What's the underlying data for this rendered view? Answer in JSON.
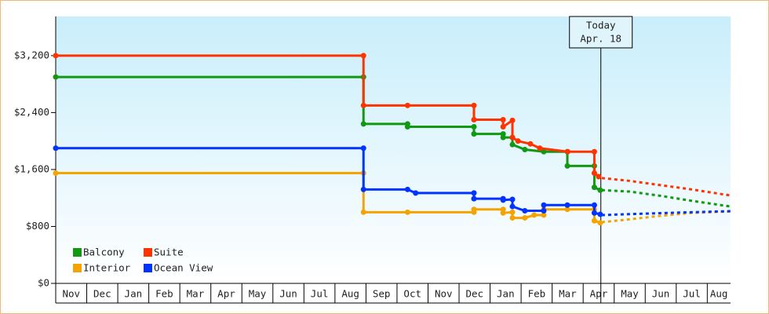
{
  "chart_data": {
    "type": "step-line",
    "xlim": [
      0,
      21.75
    ],
    "xticks": [
      {
        "value": 0,
        "label": "Nov"
      },
      {
        "value": 1,
        "label": "Dec"
      },
      {
        "value": 2,
        "label": "Jan"
      },
      {
        "value": 3,
        "label": "Feb"
      },
      {
        "value": 4,
        "label": "Mar"
      },
      {
        "value": 5,
        "label": "Apr"
      },
      {
        "value": 6,
        "label": "May"
      },
      {
        "value": 7,
        "label": "Jun"
      },
      {
        "value": 8,
        "label": "Jul"
      },
      {
        "value": 9,
        "label": "Aug"
      },
      {
        "value": 10,
        "label": "Sep"
      },
      {
        "value": 11,
        "label": "Oct"
      },
      {
        "value": 12,
        "label": "Nov"
      },
      {
        "value": 13,
        "label": "Dec"
      },
      {
        "value": 14,
        "label": "Jan"
      },
      {
        "value": 15,
        "label": "Feb"
      },
      {
        "value": 16,
        "label": "Mar"
      },
      {
        "value": 17,
        "label": "Apr"
      },
      {
        "value": 18,
        "label": "May"
      },
      {
        "value": 19,
        "label": "Jun"
      },
      {
        "value": 20,
        "label": "Jul"
      },
      {
        "value": 21,
        "label": "Aug"
      }
    ],
    "ylim": [
      0,
      3750
    ],
    "yticks": [
      {
        "value": 0,
        "label": "$0"
      },
      {
        "value": 800,
        "label": "$800"
      },
      {
        "value": 1600,
        "label": "$1,600"
      },
      {
        "value": 2400,
        "label": "$2,400"
      },
      {
        "value": 3200,
        "label": "$3,200"
      }
    ],
    "annotation": {
      "x": 17.57,
      "lines": [
        "Today",
        "Apr. 18"
      ]
    },
    "legend": "lower-left",
    "series": [
      {
        "name": "Balcony",
        "color": "#119911",
        "x": [
          0,
          9.92,
          9.92,
          11.34,
          11.34,
          13.48,
          13.48,
          14.42,
          14.42,
          14.72,
          14.72,
          15.12,
          15.73,
          16.49,
          16.49,
          17.36,
          17.36,
          17.55
        ],
        "values": [
          2900,
          2900,
          2240,
          2240,
          2200,
          2200,
          2100,
          2100,
          2050,
          2050,
          1950,
          1880,
          1850,
          1850,
          1650,
          1650,
          1350,
          1310
        ],
        "forecast_x": [
          17.6,
          18.5,
          19.5,
          20.5,
          21.75
        ],
        "forecast_values": [
          1310,
          1290,
          1230,
          1160,
          1080
        ]
      },
      {
        "name": "Suite",
        "color": "#ff3300",
        "x": [
          0,
          9.92,
          9.92,
          11.34,
          13.48,
          13.48,
          14.42,
          14.42,
          14.72,
          14.72,
          14.9,
          15.3,
          15.6,
          16.5,
          17.36,
          17.36,
          17.5
        ],
        "values": [
          3200,
          3200,
          2500,
          2500,
          2500,
          2300,
          2300,
          2200,
          2290,
          2050,
          2000,
          1960,
          1900,
          1850,
          1850,
          1550,
          1500
        ],
        "forecast_x": [
          17.6,
          18.5,
          19.5,
          20.5,
          21.75
        ],
        "forecast_values": [
          1480,
          1440,
          1380,
          1320,
          1235
        ]
      },
      {
        "name": "Interior",
        "color": "#f5a300",
        "x": [
          0,
          9.92,
          9.92,
          11.34,
          13.48,
          13.48,
          14.42,
          14.42,
          14.72,
          14.72,
          15.12,
          15.42,
          15.73,
          15.73,
          16.49,
          17.36,
          17.36,
          17.55
        ],
        "values": [
          1550,
          1550,
          1000,
          1000,
          1000,
          1040,
          1040,
          990,
          1000,
          920,
          920,
          960,
          960,
          1040,
          1040,
          1040,
          880,
          850
        ],
        "forecast_x": [
          17.6,
          18.5,
          19.5,
          20.5,
          21.75
        ],
        "forecast_values": [
          860,
          900,
          950,
          990,
          1010
        ]
      },
      {
        "name": "Ocean View",
        "color": "#0033ff",
        "x": [
          0,
          9.92,
          9.92,
          11.34,
          11.6,
          13.48,
          13.48,
          14.42,
          14.42,
          14.72,
          14.72,
          15.12,
          15.73,
          15.73,
          16.49,
          17.36,
          17.36,
          17.55
        ],
        "values": [
          1900,
          1900,
          1320,
          1320,
          1270,
          1270,
          1190,
          1190,
          1170,
          1180,
          1080,
          1020,
          1020,
          1100,
          1100,
          1100,
          990,
          970
        ],
        "forecast_x": [
          17.6,
          19,
          20.5,
          21.75
        ],
        "forecast_values": [
          960,
          980,
          1000,
          1015
        ]
      }
    ]
  }
}
